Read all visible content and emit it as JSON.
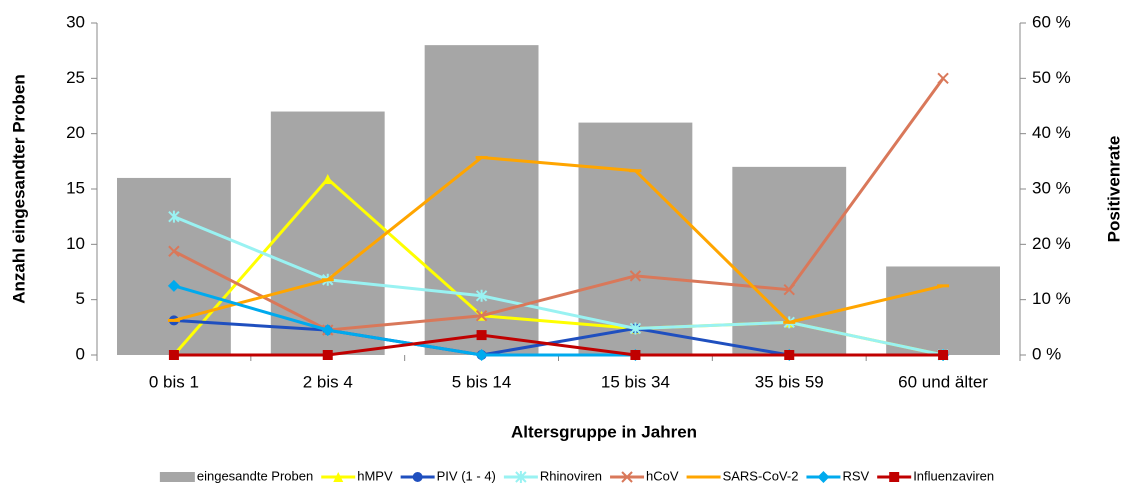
{
  "chart_data": {
    "type": "bar-line",
    "x_label": "Altersgruppe in Jahren",
    "y_label": "Anzahl eingesandter Proben",
    "y2_label": "Positivenrate",
    "categories": [
      "0 bis 1",
      "2 bis 4",
      "5 bis 14",
      "15 bis 34",
      "35 bis 59",
      "60 und älter"
    ],
    "ylim": [
      0,
      30
    ],
    "yticks": [
      0,
      5,
      10,
      15,
      20,
      25,
      30
    ],
    "y2lim": [
      0,
      60
    ],
    "y2ticks": [
      {
        "value": 0,
        "label": "0 %"
      },
      {
        "value": 10,
        "label": "10 %"
      },
      {
        "value": 20,
        "label": "20 %"
      },
      {
        "value": 30,
        "label": "30 %"
      },
      {
        "value": 40,
        "label": "40 %"
      },
      {
        "value": 50,
        "label": "50 %"
      },
      {
        "value": 60,
        "label": "60 %"
      }
    ],
    "series": [
      {
        "name": "eingesandte Proben",
        "type": "bar",
        "color": "#a6a6a6",
        "values": [
          16,
          22,
          28,
          21,
          17,
          8
        ]
      },
      {
        "name": "hMPV",
        "type": "line",
        "axis": "y2",
        "marker": "triangle",
        "color": "#ffff00",
        "values": [
          0,
          31.8,
          7.1,
          4.8,
          5.9,
          0
        ]
      },
      {
        "name": "PIV (1 - 4)",
        "type": "line",
        "axis": "y2",
        "marker": "circle",
        "color": "#1f4fbf",
        "values": [
          6.25,
          4.5,
          0,
          4.8,
          0,
          0
        ]
      },
      {
        "name": "Rhinoviren",
        "type": "line",
        "axis": "y2",
        "marker": "star",
        "color": "#99f2f2",
        "values": [
          25,
          13.6,
          10.7,
          4.8,
          5.9,
          0
        ]
      },
      {
        "name": "hCoV",
        "type": "line",
        "axis": "y2",
        "marker": "cross",
        "color": "#d9785a",
        "values": [
          18.75,
          4.5,
          7.1,
          14.3,
          11.8,
          50
        ]
      },
      {
        "name": "SARS-CoV-2",
        "type": "line",
        "axis": "y2",
        "marker": "dash",
        "color": "#ffa500",
        "values": [
          6.25,
          13.6,
          35.7,
          33.3,
          5.9,
          12.5
        ]
      },
      {
        "name": "RSV",
        "type": "line",
        "axis": "y2",
        "marker": "diamond",
        "color": "#00aaee",
        "values": [
          12.5,
          4.5,
          0,
          0,
          0,
          0
        ]
      },
      {
        "name": "Influenzaviren",
        "type": "line",
        "axis": "y2",
        "marker": "square",
        "color": "#c00000",
        "values": [
          0,
          0,
          3.6,
          0,
          0,
          0
        ]
      }
    ]
  }
}
